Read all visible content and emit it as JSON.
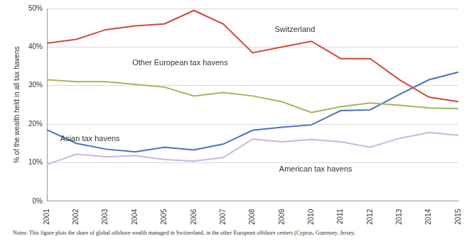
{
  "chart_data": {
    "type": "line",
    "y_label": "% of the wealth held in all tax havens",
    "notes": "Notes: This figure plots the share of global offshore wealth managed in Switzerland, in the other European offshore centers (Cyprus, Guernsey, Jersey,",
    "categories": [
      "2001",
      "2002",
      "2003",
      "2004",
      "2005",
      "2006",
      "2007",
      "2008",
      "2009",
      "2010",
      "2011",
      "2012",
      "2013",
      "2014",
      "2015"
    ],
    "series": [
      {
        "name": "Switzerland",
        "color": "#d04a3c",
        "values": [
          41,
          42,
          44.5,
          45.5,
          46,
          49.5,
          46,
          38.5,
          40,
          41.5,
          37,
          37,
          31.5,
          27,
          25.8
        ]
      },
      {
        "name": "Other European tax havens",
        "color": "#9bbb59",
        "values": [
          31.5,
          31,
          31,
          30.3,
          29.6,
          27.3,
          28.2,
          27.3,
          25.8,
          23,
          24.5,
          25.5,
          24.9,
          24.2,
          24
        ]
      },
      {
        "name": "Asian tax havens",
        "color": "#4a72c0",
        "values": [
          18.5,
          15,
          13.5,
          12.8,
          14,
          13.3,
          14.8,
          18.4,
          19.2,
          19.8,
          23.5,
          23.7,
          27.7,
          31.5,
          33.5
        ]
      },
      {
        "name": "American tax havens",
        "color": "#c9b8df",
        "values": [
          9.5,
          12.2,
          11.5,
          11.8,
          10.8,
          10.4,
          11.3,
          16.1,
          15.4,
          16,
          15.4,
          14,
          16.3,
          17.8,
          17.1
        ]
      }
    ],
    "ylim": [
      0,
      50
    ],
    "yticks": [
      {
        "value": 0,
        "label": "0%"
      },
      {
        "value": 10,
        "label": "10%"
      },
      {
        "value": 20,
        "label": "20%"
      },
      {
        "value": 30,
        "label": "30%"
      },
      {
        "value": 40,
        "label": "40%"
      },
      {
        "value": 50,
        "label": "50%"
      }
    ],
    "grid": true
  }
}
